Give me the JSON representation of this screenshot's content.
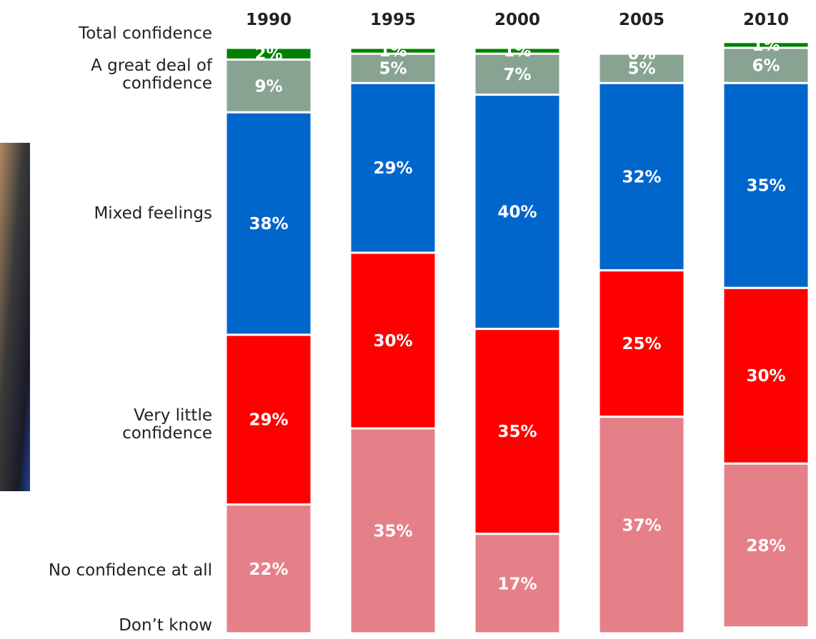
{
  "chart_data": {
    "type": "bar",
    "stacked": true,
    "categories": [
      "1990",
      "1995",
      "2000",
      "2005",
      "2010"
    ],
    "series": [
      {
        "name": "Don’t know",
        "color": "#ffffff",
        "values": [
          0,
          0,
          0,
          0,
          1
        ]
      },
      {
        "name": "No confidence at all",
        "color": "#e58088",
        "values": [
          22,
          35,
          17,
          37,
          28
        ]
      },
      {
        "name": "Very little confidence",
        "color": "#ff0000",
        "values": [
          29,
          30,
          35,
          25,
          30
        ]
      },
      {
        "name": "Mixed feelings",
        "color": "#0066cc",
        "values": [
          38,
          29,
          40,
          32,
          35
        ]
      },
      {
        "name": "A great deal of confidence",
        "color": "#88a391",
        "values": [
          9,
          5,
          7,
          5,
          6
        ]
      },
      {
        "name": "Total confidence",
        "color": "#008000",
        "values": [
          2,
          1,
          1,
          0,
          1
        ]
      }
    ],
    "ylim": [
      0,
      100
    ]
  }
}
